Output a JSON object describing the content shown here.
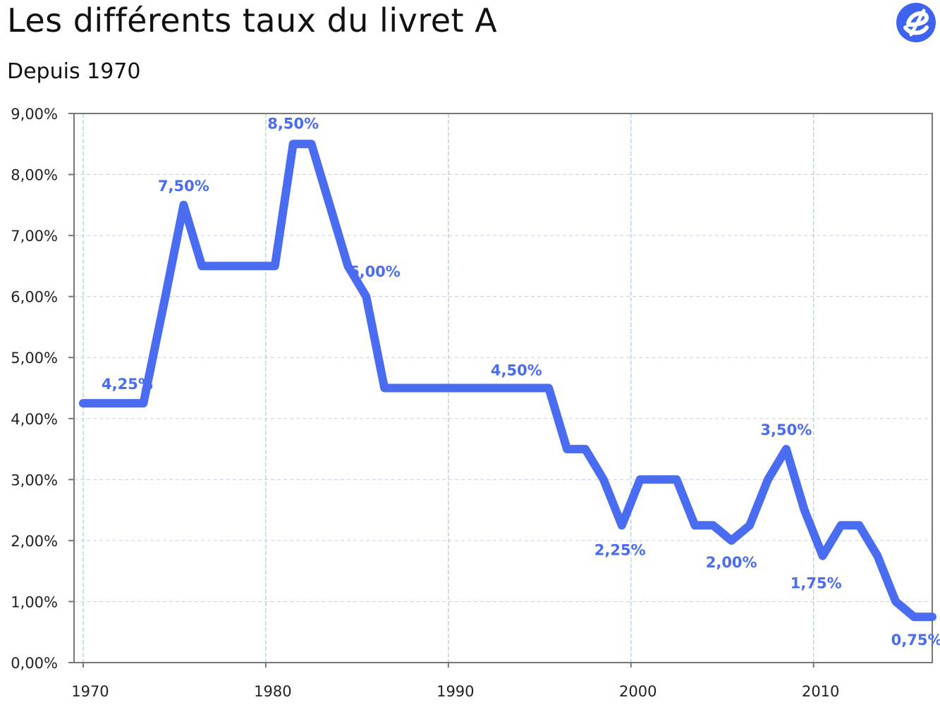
{
  "header": {
    "title": "Les différents taux du livret A",
    "subtitle": "Depuis 1970"
  },
  "logo": {
    "icon": "e-logo-icon",
    "color": "#3d63f0"
  },
  "colors": {
    "line": "#4a6cf0",
    "grid_h": "#c9cbe8",
    "grid_v": "#b8d4e6",
    "axis": "#777777",
    "label": "#4a6cf0"
  },
  "chart_data": {
    "type": "line",
    "title": "",
    "xlabel": "",
    "ylabel": "",
    "xlim": [
      1969.5,
      2016.5
    ],
    "ylim": [
      0,
      9
    ],
    "x_ticks": [
      1970,
      1980,
      1990,
      2000,
      2010
    ],
    "y_ticks": [
      "0,00%",
      "1,00%",
      "2,00%",
      "3,00%",
      "4,00%",
      "5,00%",
      "6,00%",
      "7,00%",
      "8,00%",
      "9,00%"
    ],
    "y_tick_values": [
      0,
      1,
      2,
      3,
      4,
      5,
      6,
      7,
      8,
      9
    ],
    "grid": true,
    "series": [
      {
        "x": [
          1970,
          1973.3,
          1974.5,
          1975.5,
          1976.5,
          1980.5,
          1981.5,
          1982.5,
          1984.5,
          1985.5,
          1986.5,
          1995.5,
          1996.5,
          1997.5,
          1998.5,
          1999.5,
          2000.5,
          2002.5,
          2003.5,
          2004.5,
          2005.5,
          2006.5,
          2007.5,
          2008.5,
          2009.5,
          2010.5,
          2011.5,
          2012.5,
          2013.5,
          2014.5,
          2015.5,
          2016.5
        ],
        "y": [
          4.25,
          4.25,
          6,
          7.5,
          6.5,
          6.5,
          8.5,
          8.5,
          6.5,
          6,
          4.5,
          4.5,
          3.5,
          3.5,
          3,
          2.25,
          3,
          3,
          2.25,
          2.25,
          2,
          2.25,
          3,
          3.5,
          2.5,
          1.75,
          2.25,
          2.25,
          1.75,
          1,
          0.75,
          0.75
        ]
      }
    ],
    "annotations": [
      {
        "text": "4,25%",
        "x": 1971.1,
        "y": 4.25
      },
      {
        "text": "7,50%",
        "x": 1975.5,
        "y": 7.5
      },
      {
        "text": "8,50%",
        "x": 1981.5,
        "y": 8.5
      },
      {
        "text": "6,00%",
        "x": 1986.2,
        "y": 6
      },
      {
        "text": "4,50%",
        "x": 1994.5,
        "y": 4.5
      },
      {
        "text": "2,25%",
        "x": 1999.4,
        "y": 2.25
      },
      {
        "text": "2,00%",
        "x": 2005.5,
        "y": 2
      },
      {
        "text": "3,50%",
        "x": 2008.5,
        "y": 3.5
      },
      {
        "text": "1,75%",
        "x": 2010.6,
        "y": 1.75
      },
      {
        "text": "0,75%",
        "x": 2015.5,
        "y": 0.75
      }
    ]
  }
}
